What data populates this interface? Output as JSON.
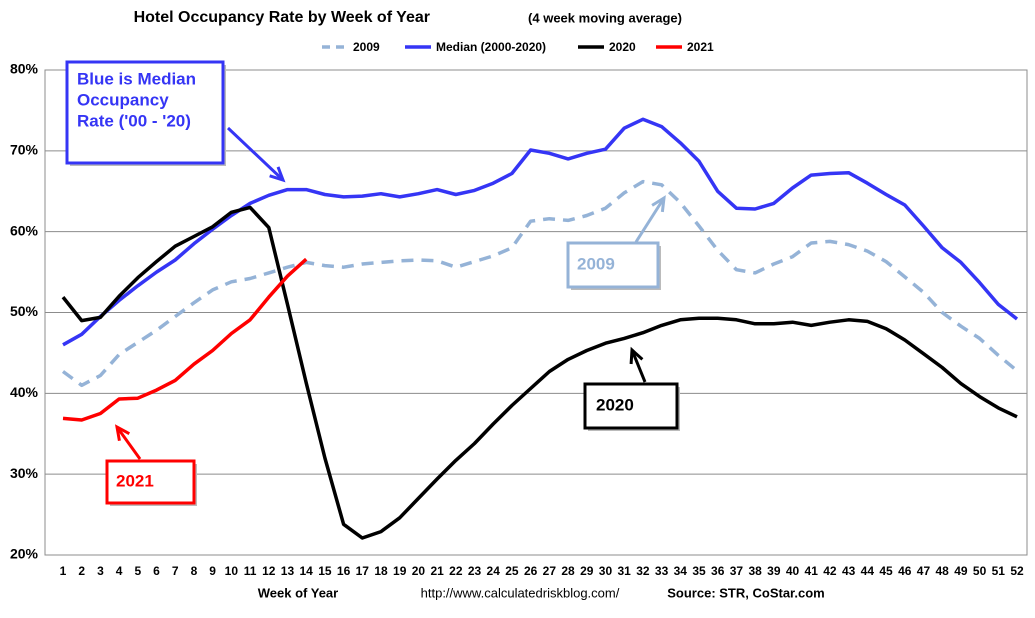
{
  "chart_data": {
    "type": "line",
    "title": "Hotel Occupancy Rate by  Week of Year",
    "subtitle": "(4 week moving average)",
    "x_label": "Week of Year",
    "url": "http://www.calculatedriskblog.com/",
    "source": "Source: STR, CoStar.com",
    "categories": [
      1,
      2,
      3,
      4,
      5,
      6,
      7,
      8,
      9,
      10,
      11,
      12,
      13,
      14,
      15,
      16,
      17,
      18,
      19,
      20,
      21,
      22,
      23,
      24,
      25,
      26,
      27,
      28,
      29,
      30,
      31,
      32,
      33,
      34,
      35,
      36,
      37,
      38,
      39,
      40,
      41,
      42,
      43,
      44,
      45,
      46,
      47,
      48,
      49,
      50,
      51,
      52
    ],
    "ylim": [
      20,
      80
    ],
    "yticks": [
      {
        "value": 20,
        "label": "20%"
      },
      {
        "value": 30,
        "label": "30%"
      },
      {
        "value": 40,
        "label": "40%"
      },
      {
        "value": 50,
        "label": "50%"
      },
      {
        "value": 60,
        "label": "60%"
      },
      {
        "value": 70,
        "label": "70%"
      },
      {
        "value": 80,
        "label": "80%"
      }
    ],
    "grid": true,
    "legend": "top",
    "series": [
      {
        "name": "2009",
        "color": "#95b3d7",
        "dash": true,
        "values": [
          42.7,
          41,
          42.2,
          44.8,
          46.3,
          47.8,
          49.5,
          51.2,
          52.8,
          53.8,
          54.2,
          54.9,
          55.6,
          56.2,
          55.8,
          55.6,
          56,
          56.2,
          56.4,
          56.5,
          56.4,
          55.6,
          56.3,
          57,
          58,
          61.3,
          61.6,
          61.4,
          62,
          62.9,
          64.8,
          66.2,
          65.8,
          63.6,
          60.7,
          57.7,
          55.3,
          54.9,
          56,
          56.9,
          58.6,
          58.8,
          58.4,
          57.6,
          56.3,
          54.4,
          52.5,
          50,
          48.3,
          46.8,
          44.7,
          42.8
        ]
      },
      {
        "name": "Median (2000-2020)",
        "color": "#3535f5",
        "dash": false,
        "values": [
          46,
          47.3,
          49.5,
          51.5,
          53.3,
          55,
          56.5,
          58.5,
          60.3,
          62,
          63.5,
          64.5,
          65.2,
          65.2,
          64.6,
          64.3,
          64.4,
          64.7,
          64.3,
          64.7,
          65.2,
          64.6,
          65.1,
          66,
          67.2,
          70.1,
          69.7,
          69,
          69.7,
          70.2,
          72.8,
          73.9,
          73,
          71,
          68.7,
          65,
          62.9,
          62.8,
          63.5,
          65.4,
          67,
          67.2,
          67.3,
          66,
          64.6,
          63.3,
          60.7,
          58,
          56.2,
          53.7,
          51,
          49.2
        ]
      },
      {
        "name": "2020",
        "color": "#000000",
        "dash": false,
        "values": [
          51.9,
          49,
          49.4,
          52,
          54.3,
          56.3,
          58.2,
          59.4,
          60.6,
          62.4,
          63,
          60.5,
          51,
          41.3,
          32,
          23.8,
          22.1,
          22.9,
          24.6,
          27,
          29.4,
          31.7,
          33.8,
          36.2,
          38.5,
          40.6,
          42.7,
          44.2,
          45.3,
          46.2,
          46.8,
          47.5,
          48.4,
          49.1,
          49.3,
          49.3,
          49.1,
          48.6,
          48.6,
          48.8,
          48.4,
          48.8,
          49.1,
          48.9,
          48,
          46.6,
          44.9,
          43.2,
          41.2,
          39.6,
          38.2,
          37.1
        ]
      },
      {
        "name": "2021",
        "color": "#ff0000",
        "dash": false,
        "values": [
          36.9,
          36.7,
          37.5,
          39.3,
          39.4,
          40.4,
          41.6,
          43.6,
          45.3,
          47.4,
          49.1,
          51.9,
          54.5,
          56.6,
          null,
          null,
          null,
          null,
          null,
          null,
          null,
          null,
          null,
          null,
          null,
          null,
          null,
          null,
          null,
          null,
          null,
          null,
          null,
          null,
          null,
          null,
          null,
          null,
          null,
          null,
          null,
          null,
          null,
          null,
          null,
          null,
          null,
          null,
          null,
          null,
          null,
          null
        ]
      }
    ],
    "annotations": [
      {
        "lines": [
          "Blue is Median",
          "Occupancy",
          "Rate ('00 - '20)"
        ],
        "color": "#3535f5"
      },
      {
        "lines": [
          "2009"
        ],
        "color": "#95b3d7"
      },
      {
        "lines": [
          "2020"
        ],
        "color": "#000000"
      },
      {
        "lines": [
          "2021"
        ],
        "color": "#ff0000"
      }
    ]
  }
}
